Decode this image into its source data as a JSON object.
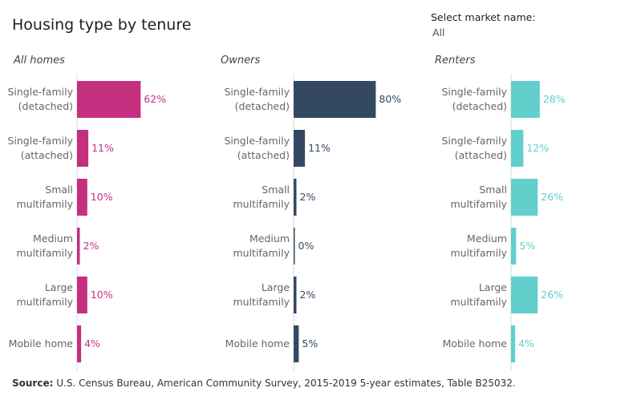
{
  "title": "Housing type by tenure",
  "filter": {
    "label": "Select market name:",
    "value": "All"
  },
  "source": {
    "label": "Source:",
    "text": "U.S. Census Bureau, American Community Survey, 2015-2019 5-year estimates, Table B25032."
  },
  "chart_data": {
    "type": "bar",
    "orientation": "horizontal",
    "categories": [
      [
        "Single-family",
        "(detached)"
      ],
      [
        "Single-family",
        "(attached)"
      ],
      [
        "Small",
        "multifamily"
      ],
      [
        "Medium",
        "multifamily"
      ],
      [
        "Large",
        "multifamily"
      ],
      [
        "Mobile home"
      ]
    ],
    "panels": [
      {
        "name": "All homes",
        "color": "#c4307f",
        "values": [
          62,
          11,
          10,
          2,
          10,
          4
        ],
        "labels": [
          "62%",
          "11%",
          "10%",
          "2%",
          "10%",
          "4%"
        ]
      },
      {
        "name": "Owners",
        "color": "#344862",
        "values": [
          80,
          11,
          2,
          0,
          2,
          5
        ],
        "labels": [
          "80%",
          "11%",
          "2%",
          "0%",
          "2%",
          "5%"
        ]
      },
      {
        "name": "Renters",
        "color": "#63cfcd",
        "values": [
          28,
          12,
          26,
          5,
          26,
          4
        ],
        "labels": [
          "28%",
          "12%",
          "26%",
          "5%",
          "26%",
          "4%"
        ]
      }
    ],
    "xlim": [
      0,
      100
    ],
    "grid": false,
    "legend": "none"
  }
}
